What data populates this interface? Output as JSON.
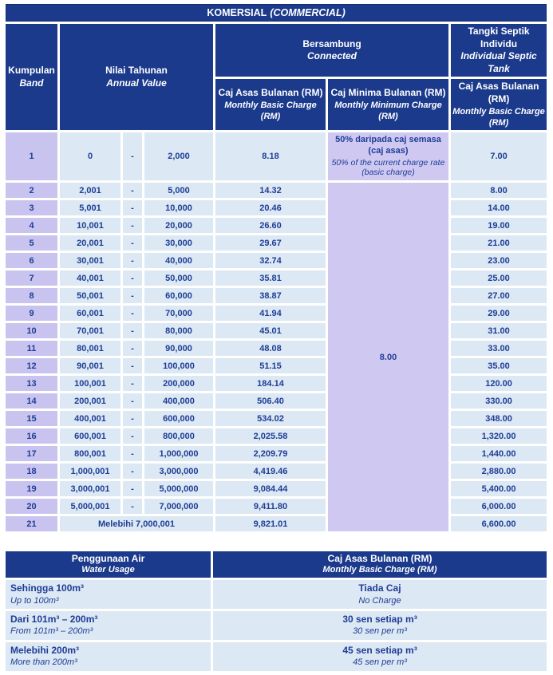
{
  "title": {
    "malay": "KOMERSIAL",
    "english": "(COMMERCIAL)"
  },
  "colors": {
    "navy_header": "#1b3a8c",
    "header_text": "#ffffff",
    "body_text": "#1e3d96",
    "band_lavender": "#c9c4ef",
    "minimum_lavender": "#cfc9f2",
    "cell_light_blue": "#dce8f3",
    "background": "#ffffff"
  },
  "main_table": {
    "headers": {
      "band": {
        "malay": "Kumpulan",
        "english": "Band"
      },
      "annual_value": {
        "malay": "Nilai Tahunan",
        "english": "Annual Value"
      },
      "connected": {
        "malay": "Bersambung",
        "english": "Connected"
      },
      "septic_tank": {
        "malay": "Tangki Septik Individu",
        "english": "Individual Septic Tank"
      },
      "monthly_basic": {
        "malay": "Caj Asas Bulanan (RM)",
        "english": "Monthly Basic Charge (RM)"
      },
      "monthly_minimum": {
        "malay": "Caj Minima Bulanan (RM)",
        "english": "Monthly Minimum Charge (RM)"
      },
      "septic_monthly_basic": {
        "malay": "Caj Asas Bulanan (RM)",
        "english": "Monthly Basic Charge (RM)"
      }
    },
    "range_separator": "-",
    "band1": {
      "band": "1",
      "low": "0",
      "high": "2,000",
      "basic": "8.18",
      "minimum_malay": "50% daripada caj semasa (caj asas)",
      "minimum_english": "50% of the current charge rate (basic charge)",
      "septic": "7.00"
    },
    "merged_minimum": "8.00",
    "bands": [
      {
        "band": "2",
        "low": "2,001",
        "high": "5,000",
        "basic": "14.32",
        "septic": "8.00"
      },
      {
        "band": "3",
        "low": "5,001",
        "high": "10,000",
        "basic": "20.46",
        "septic": "14.00"
      },
      {
        "band": "4",
        "low": "10,001",
        "high": "20,000",
        "basic": "26.60",
        "septic": "19.00"
      },
      {
        "band": "5",
        "low": "20,001",
        "high": "30,000",
        "basic": "29.67",
        "septic": "21.00"
      },
      {
        "band": "6",
        "low": "30,001",
        "high": "40,000",
        "basic": "32.74",
        "septic": "23.00"
      },
      {
        "band": "7",
        "low": "40,001",
        "high": "50,000",
        "basic": "35.81",
        "septic": "25.00"
      },
      {
        "band": "8",
        "low": "50,001",
        "high": "60,000",
        "basic": "38.87",
        "septic": "27.00"
      },
      {
        "band": "9",
        "low": "60,001",
        "high": "70,000",
        "basic": "41.94",
        "septic": "29.00"
      },
      {
        "band": "10",
        "low": "70,001",
        "high": "80,000",
        "basic": "45.01",
        "septic": "31.00"
      },
      {
        "band": "11",
        "low": "80,001",
        "high": "90,000",
        "basic": "48.08",
        "septic": "33.00"
      },
      {
        "band": "12",
        "low": "90,001",
        "high": "100,000",
        "basic": "51.15",
        "septic": "35.00"
      },
      {
        "band": "13",
        "low": "100,001",
        "high": "200,000",
        "basic": "184.14",
        "septic": "120.00"
      },
      {
        "band": "14",
        "low": "200,001",
        "high": "400,000",
        "basic": "506.40",
        "septic": "330.00"
      },
      {
        "band": "15",
        "low": "400,001",
        "high": "600,000",
        "basic": "534.02",
        "septic": "348.00"
      },
      {
        "band": "16",
        "low": "600,001",
        "high": "800,000",
        "basic": "2,025.58",
        "septic": "1,320.00"
      },
      {
        "band": "17",
        "low": "800,001",
        "high": "1,000,000",
        "basic": "2,209.79",
        "septic": "1,440.00"
      },
      {
        "band": "18",
        "low": "1,000,001",
        "high": "3,000,000",
        "basic": "4,419.46",
        "septic": "2,880.00"
      },
      {
        "band": "19",
        "low": "3,000,001",
        "high": "5,000,000",
        "basic": "9,084.44",
        "septic": "5,400.00"
      },
      {
        "band": "20",
        "low": "5,000,001",
        "high": "7,000,000",
        "basic": "9,411.80",
        "septic": "6,000.00"
      },
      {
        "band": "21",
        "range": "Melebihi 7,000,001",
        "basic": "9,821.01",
        "septic": "6,600.00"
      }
    ]
  },
  "usage_table": {
    "headers": {
      "usage": {
        "malay": "Penggunaan Air",
        "english": "Water Usage"
      },
      "charge": {
        "malay": "Caj Asas Bulanan (RM)",
        "english": "Monthly Basic Charge (RM)"
      }
    },
    "rows": [
      {
        "usage_malay": "Sehingga 100m³",
        "usage_english": "Up to 100m³",
        "charge_malay": "Tiada Caj",
        "charge_english": "No Charge"
      },
      {
        "usage_malay": "Dari 101m³ – 200m³",
        "usage_english": "From 101m³ – 200m³",
        "charge_malay": "30 sen setiap m³",
        "charge_english": "30 sen per m³"
      },
      {
        "usage_malay": "Melebihi 200m³",
        "usage_english": "More than 200m³",
        "charge_malay": "45 sen setiap m³",
        "charge_english": "45 sen per m³"
      }
    ]
  }
}
